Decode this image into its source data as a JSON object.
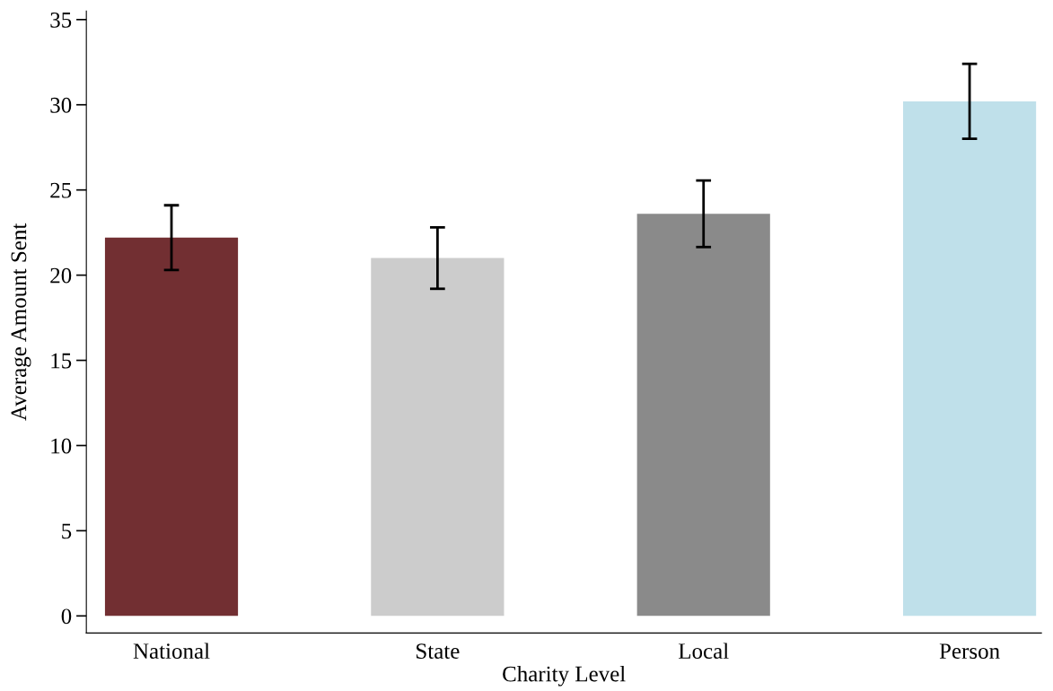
{
  "chart_data": {
    "type": "bar",
    "xlabel": "Charity Level",
    "ylabel": "Average Amount Sent",
    "categories": [
      "National",
      "State",
      "Local",
      "Person"
    ],
    "values": [
      22.2,
      21.0,
      23.6,
      30.2
    ],
    "errors": [
      1.9,
      1.8,
      1.95,
      2.2
    ],
    "colors": [
      "#722f32",
      "#cccccc",
      "#8a8a8a",
      "#bfe0ea"
    ],
    "ylim": [
      -1,
      35.5
    ],
    "yticks": [
      0,
      5,
      10,
      15,
      20,
      25,
      30,
      35
    ],
    "grid": false
  }
}
